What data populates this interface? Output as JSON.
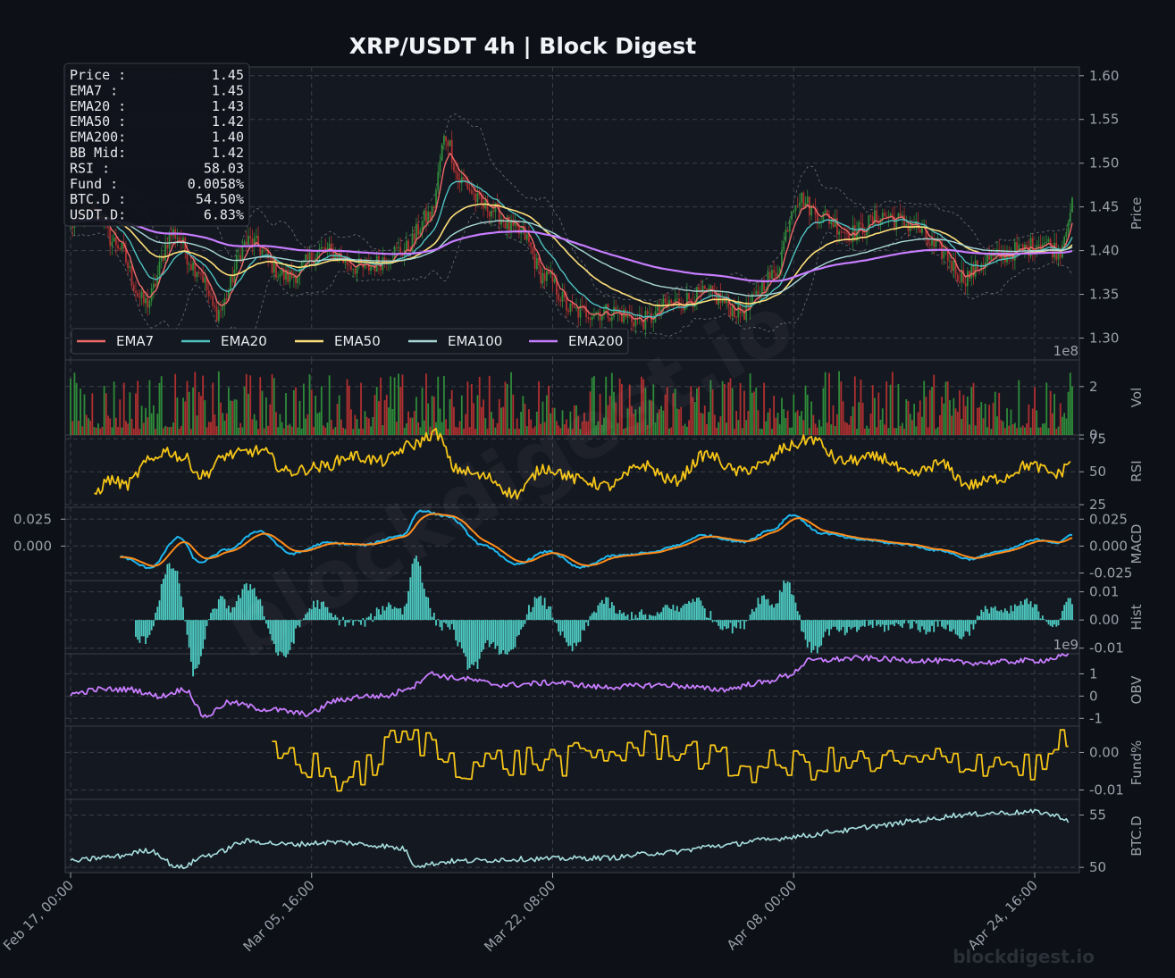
{
  "page": {
    "title": "XRP/USDT  4h  |  Block Digest",
    "watermark": "blockdigest.io",
    "footer": "blockdigest.io"
  },
  "info_box": [
    {
      "label": "Price :",
      "value": "1.45"
    },
    {
      "label": "EMA7  :",
      "value": "1.45"
    },
    {
      "label": "EMA20 :",
      "value": "1.43"
    },
    {
      "label": "EMA50 :",
      "value": "1.42"
    },
    {
      "label": "EMA200:",
      "value": "1.40"
    },
    {
      "label": "BB Mid:",
      "value": "1.42"
    },
    {
      "label": "RSI   :",
      "value": "58.03"
    },
    {
      "label": "Fund  :",
      "value": "0.0058%"
    },
    {
      "label": "BTC.D :",
      "value": "54.50%"
    },
    {
      "label": "USDT.D:",
      "value": "6.83%"
    }
  ],
  "colors": {
    "background": "#0d1017",
    "panel": "#141820",
    "up": "#2e8b3a",
    "down": "#b03030",
    "ema7": "#f06a6a",
    "ema20": "#4fc3c3",
    "ema50": "#ffe07a",
    "ema100": "#a8d8d8",
    "ema200": "#c77dff",
    "rsi": "#f5c518",
    "macd": "#1fb8f0",
    "signal": "#ff8c1a",
    "hist": "#4ecdc4",
    "obv": "#c77dff",
    "funding": "#f5c518",
    "btcd": "#a8e0e0"
  },
  "chart_data": {
    "type": "line",
    "title": "XRP/USDT  4h  |  Block Digest",
    "x_ticks": [
      "Feb 17, 00:00",
      "Mar 05, 16:00",
      "Mar 22, 08:00",
      "Apr 08, 00:00",
      "Apr 24, 16:00"
    ],
    "panels": [
      {
        "name": "price",
        "type": "candlestick",
        "ylabel": "Price",
        "y_ticks": [
          "1.30",
          "1.35",
          "1.40",
          "1.45",
          "1.50",
          "1.55",
          "1.60"
        ],
        "ylim": [
          1.275,
          1.61
        ],
        "legend": [
          "EMA7",
          "EMA20",
          "EMA50",
          "EMA100",
          "EMA200"
        ],
        "legend_loc": "lower left",
        "keypoints": [
          [
            0,
            1.43
          ],
          [
            12,
            1.45
          ],
          [
            22,
            1.41
          ],
          [
            38,
            1.34
          ],
          [
            52,
            1.42
          ],
          [
            64,
            1.38
          ],
          [
            74,
            1.33
          ],
          [
            90,
            1.41
          ],
          [
            110,
            1.37
          ],
          [
            128,
            1.4
          ],
          [
            148,
            1.38
          ],
          [
            168,
            1.4
          ],
          [
            182,
            1.44
          ],
          [
            190,
            1.53
          ],
          [
            197,
            1.48
          ],
          [
            210,
            1.45
          ],
          [
            228,
            1.42
          ],
          [
            240,
            1.37
          ],
          [
            255,
            1.33
          ],
          [
            272,
            1.33
          ],
          [
            290,
            1.32
          ],
          [
            305,
            1.34
          ],
          [
            322,
            1.35
          ],
          [
            340,
            1.33
          ],
          [
            355,
            1.37
          ],
          [
            368,
            1.46
          ],
          [
            380,
            1.44
          ],
          [
            395,
            1.42
          ],
          [
            412,
            1.44
          ],
          [
            425,
            1.43
          ],
          [
            440,
            1.4
          ],
          [
            452,
            1.37
          ],
          [
            465,
            1.39
          ],
          [
            480,
            1.4
          ],
          [
            492,
            1.41
          ],
          [
            500,
            1.4
          ],
          [
            507,
            1.45
          ]
        ]
      },
      {
        "name": "volume",
        "type": "bar",
        "ylabel": "Vol",
        "y_ticks": [
          "0",
          "2"
        ],
        "offset_label": "1e8",
        "ylim": [
          0,
          3.1
        ]
      },
      {
        "name": "rsi",
        "type": "line",
        "ylabel": "RSI",
        "y_ticks": [
          "25",
          "50",
          "75"
        ],
        "ylim": [
          23,
          78
        ],
        "keypoints": [
          [
            12,
            34
          ],
          [
            20,
            44
          ],
          [
            28,
            40
          ],
          [
            40,
            58
          ],
          [
            48,
            66
          ],
          [
            58,
            60
          ],
          [
            66,
            47
          ],
          [
            80,
            63
          ],
          [
            96,
            66
          ],
          [
            110,
            50
          ],
          [
            128,
            54
          ],
          [
            142,
            62
          ],
          [
            158,
            58
          ],
          [
            172,
            70
          ],
          [
            185,
            79
          ],
          [
            195,
            52
          ],
          [
            210,
            46
          ],
          [
            225,
            33
          ],
          [
            240,
            53
          ],
          [
            258,
            44
          ],
          [
            272,
            39
          ],
          [
            290,
            55
          ],
          [
            305,
            43
          ],
          [
            322,
            63
          ],
          [
            338,
            50
          ],
          [
            350,
            55
          ],
          [
            363,
            69
          ],
          [
            375,
            75
          ],
          [
            390,
            58
          ],
          [
            410,
            61
          ],
          [
            425,
            47
          ],
          [
            440,
            56
          ],
          [
            455,
            40
          ],
          [
            470,
            45
          ],
          [
            485,
            55
          ],
          [
            500,
            48
          ],
          [
            506,
            58
          ]
        ]
      },
      {
        "name": "macd",
        "type": "line",
        "ylabel": "MACD",
        "y_ticks": [
          "-0.025",
          "0.000",
          "0.025"
        ],
        "left_ticks": [
          "0.000",
          "0.025"
        ],
        "ylim": [
          -0.032,
          0.036
        ],
        "keypoints": [
          [
            25,
            -0.01
          ],
          [
            40,
            -0.02
          ],
          [
            55,
            0.008
          ],
          [
            65,
            -0.015
          ],
          [
            80,
            -0.003
          ],
          [
            95,
            0.014
          ],
          [
            112,
            -0.007
          ],
          [
            130,
            0.003
          ],
          [
            148,
            0.001
          ],
          [
            168,
            0.01
          ],
          [
            177,
            0.033
          ],
          [
            190,
            0.028
          ],
          [
            210,
            0.0
          ],
          [
            225,
            -0.017
          ],
          [
            242,
            -0.005
          ],
          [
            258,
            -0.02
          ],
          [
            275,
            -0.009
          ],
          [
            295,
            -0.006
          ],
          [
            305,
            0.0
          ],
          [
            320,
            0.01
          ],
          [
            340,
            0.004
          ],
          [
            355,
            0.015
          ],
          [
            365,
            0.029
          ],
          [
            380,
            0.012
          ],
          [
            400,
            0.006
          ],
          [
            420,
            0.002
          ],
          [
            440,
            -0.004
          ],
          [
            455,
            -0.012
          ],
          [
            470,
            -0.005
          ],
          [
            490,
            0.006
          ],
          [
            500,
            0.003
          ],
          [
            507,
            0.011
          ]
        ]
      },
      {
        "name": "hist",
        "type": "bar",
        "ylabel": "Hist",
        "y_ticks": [
          "-0.01",
          "0.00",
          "0.01"
        ],
        "ylim": [
          -0.012,
          0.014
        ]
      },
      {
        "name": "obv",
        "type": "line",
        "ylabel": "OBV",
        "y_ticks": [
          "-1",
          "0",
          "1"
        ],
        "offset_label": "1e9",
        "ylim": [
          -1.35,
          1.9
        ],
        "keypoints": [
          [
            0,
            0.1
          ],
          [
            15,
            0.3
          ],
          [
            30,
            0.3
          ],
          [
            45,
            0.0
          ],
          [
            58,
            0.3
          ],
          [
            68,
            -0.9
          ],
          [
            80,
            -0.3
          ],
          [
            100,
            -0.6
          ],
          [
            120,
            -0.8
          ],
          [
            135,
            -0.2
          ],
          [
            148,
            0.0
          ],
          [
            160,
            0.0
          ],
          [
            172,
            0.4
          ],
          [
            182,
            1.0
          ],
          [
            195,
            0.8
          ],
          [
            220,
            0.5
          ],
          [
            245,
            0.6
          ],
          [
            270,
            0.4
          ],
          [
            300,
            0.5
          ],
          [
            330,
            0.3
          ],
          [
            350,
            0.6
          ],
          [
            362,
            0.9
          ],
          [
            375,
            1.6
          ],
          [
            400,
            1.7
          ],
          [
            430,
            1.6
          ],
          [
            460,
            1.5
          ],
          [
            490,
            1.6
          ],
          [
            505,
            1.8
          ]
        ]
      },
      {
        "name": "funding",
        "type": "line",
        "ylabel": "Fund%",
        "y_ticks": [
          "-0.01",
          "0.00"
        ],
        "ylim": [
          -0.0125,
          0.007
        ],
        "keypoints": [
          [
            102,
            0.0
          ],
          [
            140,
            -0.007
          ],
          [
            170,
            0.004
          ],
          [
            200,
            -0.003
          ],
          [
            250,
            -0.002
          ],
          [
            300,
            0.002
          ],
          [
            340,
            -0.004
          ],
          [
            380,
            -0.003
          ],
          [
            420,
            -0.003
          ],
          [
            460,
            -0.002
          ],
          [
            490,
            -0.004
          ],
          [
            505,
            0.0058
          ]
        ]
      },
      {
        "name": "btc_dominance",
        "type": "line",
        "ylabel": "BTC.D",
        "y_ticks": [
          "50",
          "55"
        ],
        "ylim": [
          49.5,
          56.5
        ],
        "keypoints": [
          [
            0,
            50.6
          ],
          [
            20,
            51.0
          ],
          [
            40,
            51.6
          ],
          [
            55,
            50.0
          ],
          [
            70,
            51.2
          ],
          [
            90,
            52.5
          ],
          [
            110,
            52.2
          ],
          [
            135,
            52.4
          ],
          [
            155,
            52.1
          ],
          [
            168,
            51.8
          ],
          [
            175,
            50.2
          ],
          [
            195,
            50.6
          ],
          [
            230,
            50.8
          ],
          [
            270,
            50.9
          ],
          [
            300,
            51.4
          ],
          [
            330,
            52.1
          ],
          [
            350,
            52.6
          ],
          [
            370,
            53.0
          ],
          [
            390,
            53.5
          ],
          [
            410,
            54.0
          ],
          [
            430,
            54.5
          ],
          [
            450,
            55.0
          ],
          [
            470,
            55.2
          ],
          [
            490,
            55.3
          ],
          [
            500,
            54.9
          ],
          [
            505,
            54.5
          ]
        ]
      }
    ]
  }
}
